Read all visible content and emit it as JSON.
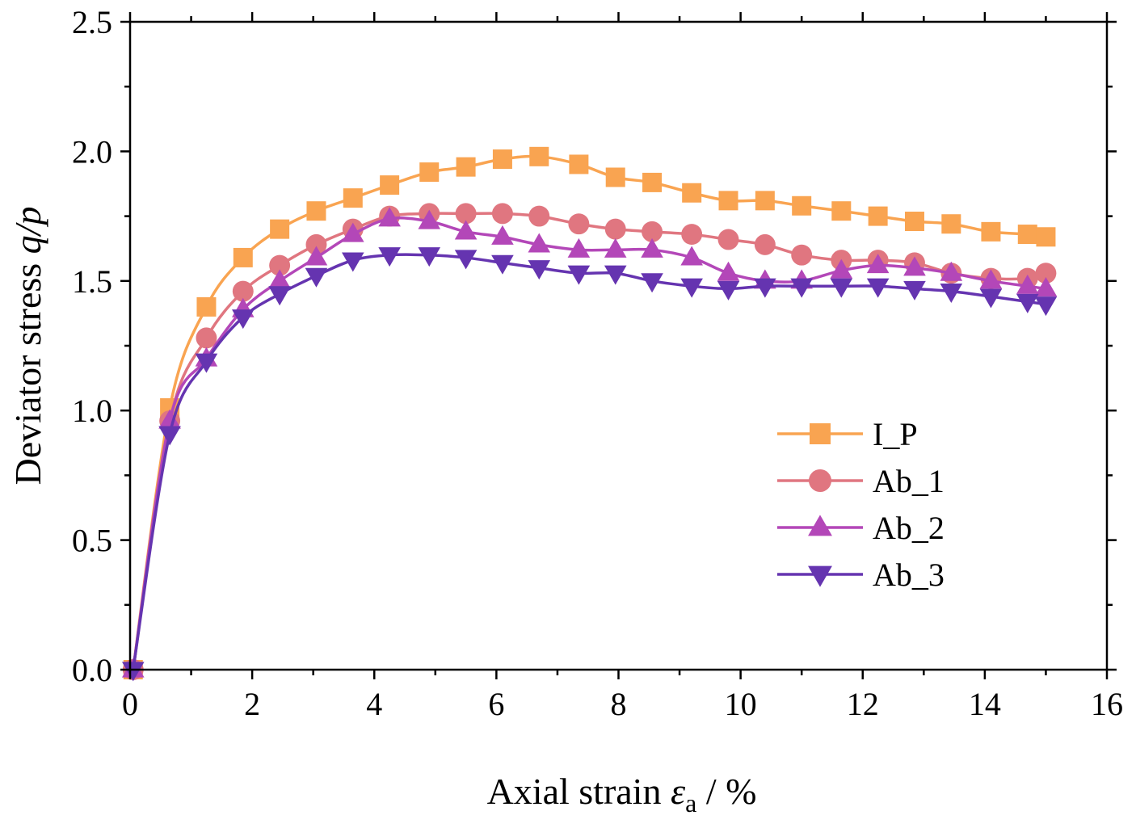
{
  "chart_data": {
    "type": "line",
    "title": "",
    "xlabel": {
      "prefix": "Axial strain ",
      "symbol": "ε",
      "subscript": "a",
      "suffix": " / %"
    },
    "ylabel": {
      "prefix": "Deviator stress ",
      "symbol": "q/p"
    },
    "xlim": [
      0,
      16
    ],
    "ylim": [
      0,
      2.5
    ],
    "xticks": [
      "0",
      "2",
      "4",
      "6",
      "8",
      "10",
      "12",
      "14",
      "16"
    ],
    "yticks": [
      "0.0",
      "0.5",
      "1.0",
      "1.5",
      "2.0",
      "2.5"
    ],
    "legend_position": "center-right",
    "x": [
      0.05,
      0.65,
      1.25,
      1.85,
      2.45,
      3.05,
      3.65,
      4.25,
      4.9,
      5.5,
      6.1,
      6.7,
      7.35,
      7.95,
      8.55,
      9.2,
      9.8,
      10.4,
      11.0,
      11.65,
      12.25,
      12.85,
      13.45,
      14.1,
      14.7,
      15.0
    ],
    "series": [
      {
        "name": "I_P",
        "marker": "square",
        "color": "#F9A451",
        "values": [
          0.0,
          1.01,
          1.4,
          1.59,
          1.7,
          1.77,
          1.82,
          1.87,
          1.92,
          1.94,
          1.97,
          1.98,
          1.95,
          1.9,
          1.88,
          1.84,
          1.81,
          1.81,
          1.79,
          1.77,
          1.75,
          1.73,
          1.72,
          1.69,
          1.68,
          1.67
        ]
      },
      {
        "name": "Ab_1",
        "marker": "circle",
        "color": "#E07680",
        "values": [
          0.0,
          0.96,
          1.28,
          1.46,
          1.56,
          1.64,
          1.7,
          1.75,
          1.76,
          1.76,
          1.76,
          1.75,
          1.72,
          1.7,
          1.69,
          1.68,
          1.66,
          1.64,
          1.6,
          1.58,
          1.58,
          1.57,
          1.53,
          1.51,
          1.51,
          1.53
        ]
      },
      {
        "name": "Ab_2",
        "marker": "triangle-up",
        "color": "#B347B8",
        "values": [
          0.0,
          0.96,
          1.2,
          1.39,
          1.5,
          1.59,
          1.68,
          1.74,
          1.73,
          1.69,
          1.67,
          1.64,
          1.62,
          1.62,
          1.62,
          1.59,
          1.53,
          1.5,
          1.5,
          1.54,
          1.56,
          1.55,
          1.53,
          1.5,
          1.48,
          1.47
        ]
      },
      {
        "name": "Ab_3",
        "marker": "triangle-down",
        "color": "#6534B0",
        "values": [
          0.0,
          0.91,
          1.19,
          1.36,
          1.45,
          1.52,
          1.58,
          1.6,
          1.6,
          1.59,
          1.57,
          1.55,
          1.53,
          1.53,
          1.5,
          1.48,
          1.47,
          1.48,
          1.48,
          1.48,
          1.48,
          1.47,
          1.46,
          1.44,
          1.42,
          1.41
        ]
      }
    ]
  }
}
